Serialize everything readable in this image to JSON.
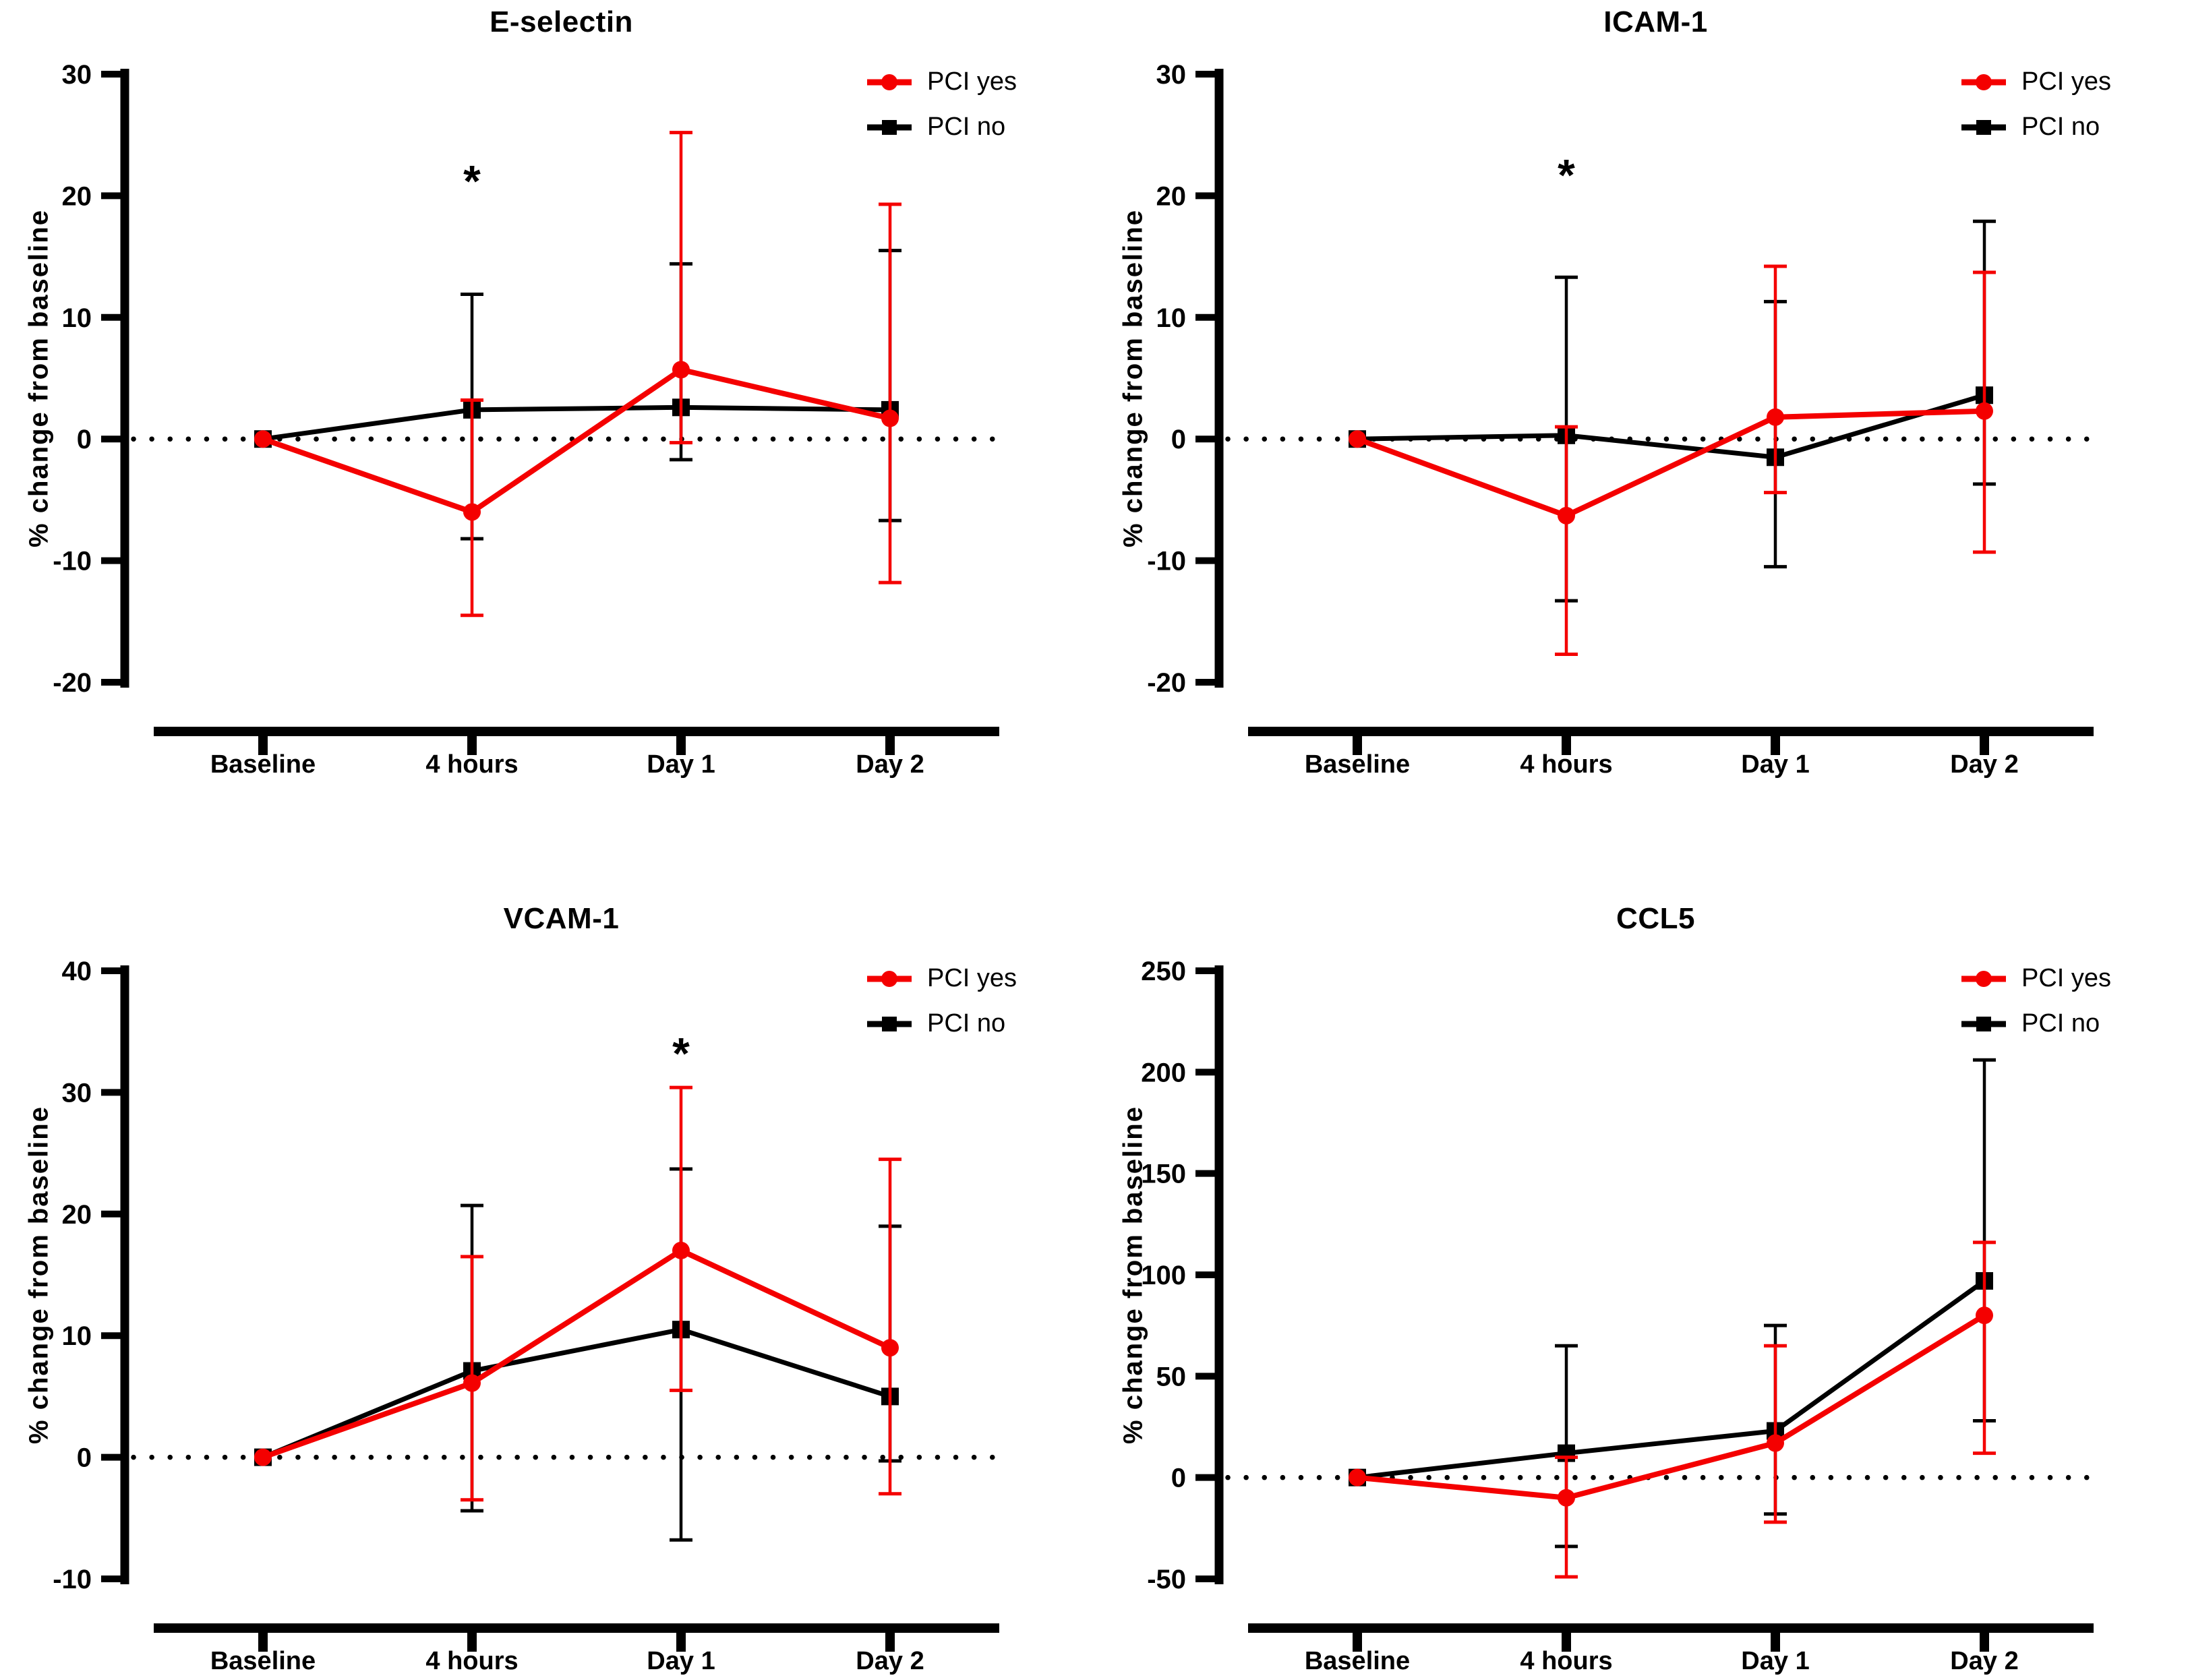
{
  "background": "#ffffff",
  "colors": {
    "pci_yes": "#F40000",
    "pci_no": "#000000"
  },
  "chart_data": [
    {
      "type": "line",
      "title": "E-selectin",
      "xlabel": "",
      "ylabel": "% change from baseline",
      "categories": [
        "Baseline",
        "4 hours",
        "Day 1",
        "Day 2"
      ],
      "ylim": [
        -20,
        30
      ],
      "ytick_step": 10,
      "grid": false,
      "zero_line": true,
      "zero_line_style": "dotted",
      "legend_position": "top-right",
      "series": [
        {
          "name": "PCI yes",
          "color": "#F40000",
          "marker": "circle",
          "values": [
            0,
            -6,
            5.7,
            1.7
          ],
          "err_low": [
            0,
            -14.5,
            -0.3,
            -11.8
          ],
          "err_high": [
            0,
            3.2,
            25.2,
            19.3
          ]
        },
        {
          "name": "PCI no",
          "color": "#000000",
          "marker": "square",
          "values": [
            0,
            2.4,
            2.6,
            2.4
          ],
          "err_low": [
            0,
            -8.2,
            -1.7,
            -6.7
          ],
          "err_high": [
            0,
            11.9,
            14.4,
            15.5
          ]
        }
      ],
      "significance": [
        {
          "category": "4 hours",
          "category_index": 1,
          "y_value": 21.5,
          "label": "*"
        }
      ]
    },
    {
      "type": "line",
      "title": "ICAM-1",
      "xlabel": "",
      "ylabel": "% change from baseline",
      "categories": [
        "Baseline",
        "4 hours",
        "Day 1",
        "Day 2"
      ],
      "ylim": [
        -20,
        30
      ],
      "ytick_step": 10,
      "grid": false,
      "zero_line": true,
      "zero_line_style": "dotted",
      "legend_position": "top-right",
      "series": [
        {
          "name": "PCI yes",
          "color": "#F40000",
          "marker": "circle",
          "values": [
            0,
            -6.3,
            1.8,
            2.3
          ],
          "err_low": [
            0,
            -17.7,
            -4.4,
            -9.3
          ],
          "err_high": [
            0,
            1.0,
            14.2,
            13.7
          ]
        },
        {
          "name": "PCI no",
          "color": "#000000",
          "marker": "square",
          "values": [
            0,
            0.3,
            -1.5,
            3.6
          ],
          "err_low": [
            0,
            -13.3,
            -10.5,
            -3.7
          ],
          "err_high": [
            0,
            13.3,
            11.3,
            17.9
          ]
        }
      ],
      "significance": [
        {
          "category": "4 hours",
          "category_index": 1,
          "y_value": 22,
          "label": "*"
        }
      ]
    },
    {
      "type": "line",
      "title": "VCAM-1",
      "xlabel": "",
      "ylabel": "% change from baseline",
      "categories": [
        "Baseline",
        "4 hours",
        "Day 1",
        "Day 2"
      ],
      "ylim": [
        -10,
        40
      ],
      "ytick_step": 10,
      "grid": false,
      "zero_line": true,
      "zero_line_style": "dotted",
      "legend_position": "top-right",
      "series": [
        {
          "name": "PCI yes",
          "color": "#F40000",
          "marker": "circle",
          "values": [
            0,
            6.1,
            17,
            9
          ],
          "err_low": [
            0,
            -3.5,
            5.5,
            -3.0
          ],
          "err_high": [
            0,
            16.5,
            30.4,
            24.5
          ]
        },
        {
          "name": "PCI no",
          "color": "#000000",
          "marker": "square",
          "values": [
            0,
            7.1,
            10.5,
            5
          ],
          "err_low": [
            0,
            -4.4,
            -6.8,
            -0.3
          ],
          "err_high": [
            0,
            20.7,
            23.7,
            19.0
          ]
        }
      ],
      "significance": [
        {
          "category": "Day 1",
          "category_index": 2,
          "y_value": 33.5,
          "label": "*"
        }
      ]
    },
    {
      "type": "line",
      "title": "CCL5",
      "xlabel": "",
      "ylabel": "% change from baseline",
      "categories": [
        "Baseline",
        "4 hours",
        "Day 1",
        "Day 2"
      ],
      "ylim": [
        -50,
        250
      ],
      "ytick_step": 50,
      "grid": false,
      "zero_line": true,
      "zero_line_style": "dotted",
      "legend_position": "top-right",
      "series": [
        {
          "name": "PCI yes",
          "color": "#F40000",
          "marker": "circle",
          "values": [
            0,
            -10,
            17,
            80
          ],
          "err_low": [
            0,
            -49,
            -22,
            12
          ],
          "err_high": [
            0,
            10,
            65,
            116
          ]
        },
        {
          "name": "PCI no",
          "color": "#000000",
          "marker": "square",
          "values": [
            0,
            12,
            23,
            97
          ],
          "err_low": [
            0,
            -34,
            -18,
            28
          ],
          "err_high": [
            0,
            65,
            75,
            206
          ]
        }
      ],
      "significance": []
    }
  ]
}
